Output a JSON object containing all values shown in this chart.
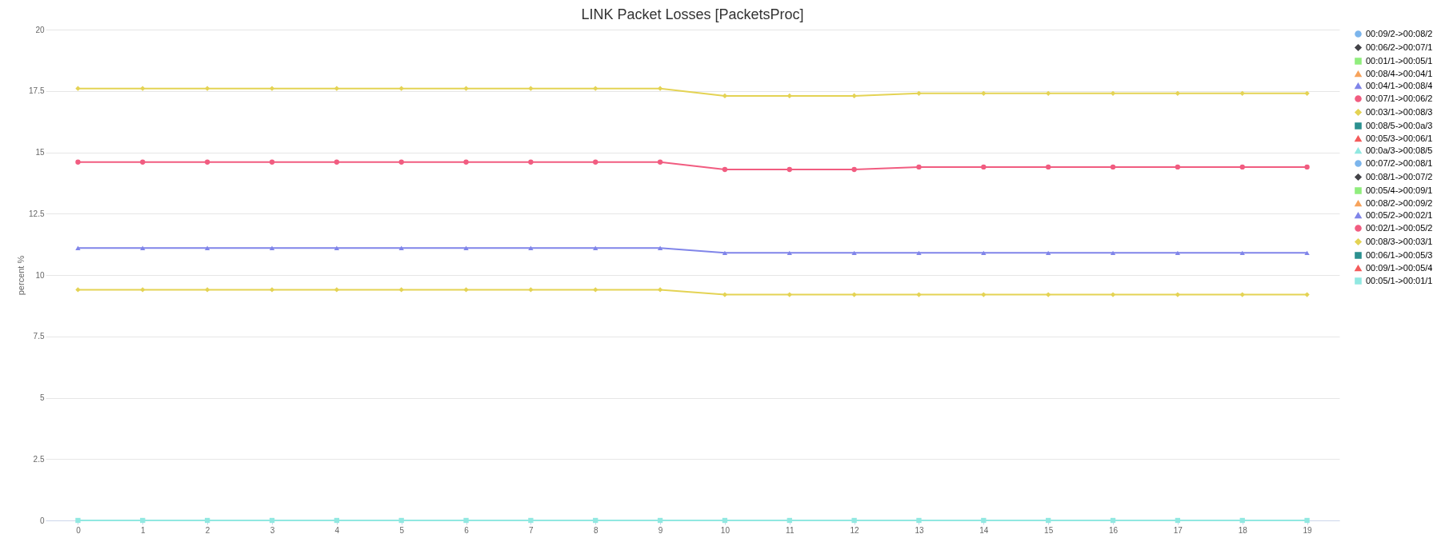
{
  "chart_data": {
    "type": "line",
    "title": "LINK Packet Losses [PacketsProc]",
    "ylabel": "percent %",
    "categories": [
      "0",
      "1",
      "2",
      "3",
      "4",
      "5",
      "6",
      "7",
      "8",
      "9",
      "10",
      "11",
      "12",
      "13",
      "14",
      "15",
      "16",
      "17",
      "18",
      "19"
    ],
    "ylim": [
      0,
      20
    ],
    "yticks": [
      0,
      2.5,
      5,
      7.5,
      10,
      12.5,
      15,
      17.5,
      20
    ],
    "grid": "y",
    "legend": "right",
    "line_style": "solid",
    "series": [
      {
        "name": "00:09/2->00:08/2",
        "color": "#7cb5ec",
        "marker": "circle",
        "values": [
          null,
          null,
          null,
          null,
          null,
          null,
          null,
          null,
          null,
          null,
          null,
          null,
          null,
          null,
          null,
          null,
          null,
          null,
          null,
          null
        ]
      },
      {
        "name": "00:06/2->00:07/1",
        "color": "#434348",
        "marker": "diamond",
        "values": [
          null,
          null,
          null,
          null,
          null,
          null,
          null,
          null,
          null,
          null,
          null,
          null,
          null,
          null,
          null,
          null,
          null,
          null,
          null,
          null
        ]
      },
      {
        "name": "00:01/1->00:05/1",
        "color": "#90ed7d",
        "marker": "square",
        "values": [
          null,
          null,
          null,
          null,
          null,
          null,
          null,
          null,
          null,
          null,
          null,
          null,
          null,
          null,
          null,
          null,
          null,
          null,
          null,
          null
        ]
      },
      {
        "name": "00:08/4->00:04/1",
        "color": "#f7a35c",
        "marker": "triangle",
        "values": [
          null,
          null,
          null,
          null,
          null,
          null,
          null,
          null,
          null,
          null,
          null,
          null,
          null,
          null,
          null,
          null,
          null,
          null,
          null,
          null
        ]
      },
      {
        "name": "00:04/1->00:08/4",
        "color": "#8085e9",
        "marker": "triangle",
        "values": [
          11.1,
          11.1,
          11.1,
          11.1,
          11.1,
          11.1,
          11.1,
          11.1,
          11.1,
          11.1,
          10.9,
          10.9,
          10.9,
          10.9,
          10.9,
          10.9,
          10.9,
          10.9,
          10.9,
          10.9
        ]
      },
      {
        "name": "00:07/1->00:06/2",
        "color": "#f15c80",
        "marker": "circle",
        "values": [
          14.6,
          14.6,
          14.6,
          14.6,
          14.6,
          14.6,
          14.6,
          14.6,
          14.6,
          14.6,
          14.3,
          14.3,
          14.3,
          14.4,
          14.4,
          14.4,
          14.4,
          14.4,
          14.4,
          14.4
        ]
      },
      {
        "name": "00:03/1->00:08/3",
        "color": "#e4d354",
        "marker": "diamond",
        "values": [
          17.6,
          17.6,
          17.6,
          17.6,
          17.6,
          17.6,
          17.6,
          17.6,
          17.6,
          17.6,
          17.3,
          17.3,
          17.3,
          17.4,
          17.4,
          17.4,
          17.4,
          17.4,
          17.4,
          17.4
        ]
      },
      {
        "name": "00:08/5->00:0a/3",
        "color": "#2b908f",
        "marker": "square",
        "values": [
          null,
          null,
          null,
          null,
          null,
          null,
          null,
          null,
          null,
          null,
          null,
          null,
          null,
          null,
          null,
          null,
          null,
          null,
          null,
          null
        ]
      },
      {
        "name": "00:05/3->00:06/1",
        "color": "#f45b5b",
        "marker": "triangle",
        "values": [
          null,
          null,
          null,
          null,
          null,
          null,
          null,
          null,
          null,
          null,
          null,
          null,
          null,
          null,
          null,
          null,
          null,
          null,
          null,
          null
        ]
      },
      {
        "name": "00:0a/3->00:08/5",
        "color": "#91e8e1",
        "marker": "triangle",
        "values": [
          null,
          null,
          null,
          null,
          null,
          null,
          null,
          null,
          null,
          null,
          null,
          null,
          null,
          null,
          null,
          null,
          null,
          null,
          null,
          null
        ]
      },
      {
        "name": "00:07/2->00:08/1",
        "color": "#7cb5ec",
        "marker": "circle",
        "values": [
          null,
          null,
          null,
          null,
          null,
          null,
          null,
          null,
          null,
          null,
          null,
          null,
          null,
          null,
          null,
          null,
          null,
          null,
          null,
          null
        ]
      },
      {
        "name": "00:08/1->00:07/2",
        "color": "#434348",
        "marker": "diamond",
        "values": [
          null,
          null,
          null,
          null,
          null,
          null,
          null,
          null,
          null,
          null,
          null,
          null,
          null,
          null,
          null,
          null,
          null,
          null,
          null,
          null
        ]
      },
      {
        "name": "00:05/4->00:09/1",
        "color": "#90ed7d",
        "marker": "square",
        "values": [
          null,
          null,
          null,
          null,
          null,
          null,
          null,
          null,
          null,
          null,
          null,
          null,
          null,
          null,
          null,
          null,
          null,
          null,
          null,
          null
        ]
      },
      {
        "name": "00:08/2->00:09/2",
        "color": "#f7a35c",
        "marker": "triangle",
        "values": [
          null,
          null,
          null,
          null,
          null,
          null,
          null,
          null,
          null,
          null,
          null,
          null,
          null,
          null,
          null,
          null,
          null,
          null,
          null,
          null
        ]
      },
      {
        "name": "00:05/2->00:02/1",
        "color": "#8085e9",
        "marker": "triangle",
        "values": [
          null,
          null,
          null,
          null,
          null,
          null,
          null,
          null,
          null,
          null,
          null,
          null,
          null,
          null,
          null,
          null,
          null,
          null,
          null,
          null
        ]
      },
      {
        "name": "00:02/1->00:05/2",
        "color": "#f15c80",
        "marker": "circle",
        "values": [
          null,
          null,
          null,
          null,
          null,
          null,
          null,
          null,
          null,
          null,
          null,
          null,
          null,
          null,
          null,
          null,
          null,
          null,
          null,
          null
        ]
      },
      {
        "name": "00:08/3->00:03/1",
        "color": "#e4d354",
        "marker": "diamond",
        "values": [
          9.4,
          9.4,
          9.4,
          9.4,
          9.4,
          9.4,
          9.4,
          9.4,
          9.4,
          9.4,
          9.2,
          9.2,
          9.2,
          9.2,
          9.2,
          9.2,
          9.2,
          9.2,
          9.2,
          9.2
        ]
      },
      {
        "name": "00:06/1->00:05/3",
        "color": "#2b908f",
        "marker": "square",
        "values": [
          null,
          null,
          null,
          null,
          null,
          null,
          null,
          null,
          null,
          null,
          null,
          null,
          null,
          null,
          null,
          null,
          null,
          null,
          null,
          null
        ]
      },
      {
        "name": "00:09/1->00:05/4",
        "color": "#f45b5b",
        "marker": "triangle",
        "values": [
          null,
          null,
          null,
          null,
          null,
          null,
          null,
          null,
          null,
          null,
          null,
          null,
          null,
          null,
          null,
          null,
          null,
          null,
          null,
          null
        ]
      },
      {
        "name": "00:05/1->00:01/1",
        "color": "#91e8e1",
        "marker": "square",
        "values": [
          0,
          0,
          0,
          0,
          0,
          0,
          0,
          0,
          0,
          0,
          0,
          0,
          0,
          0,
          0,
          0,
          0,
          0,
          0,
          0
        ]
      }
    ]
  }
}
